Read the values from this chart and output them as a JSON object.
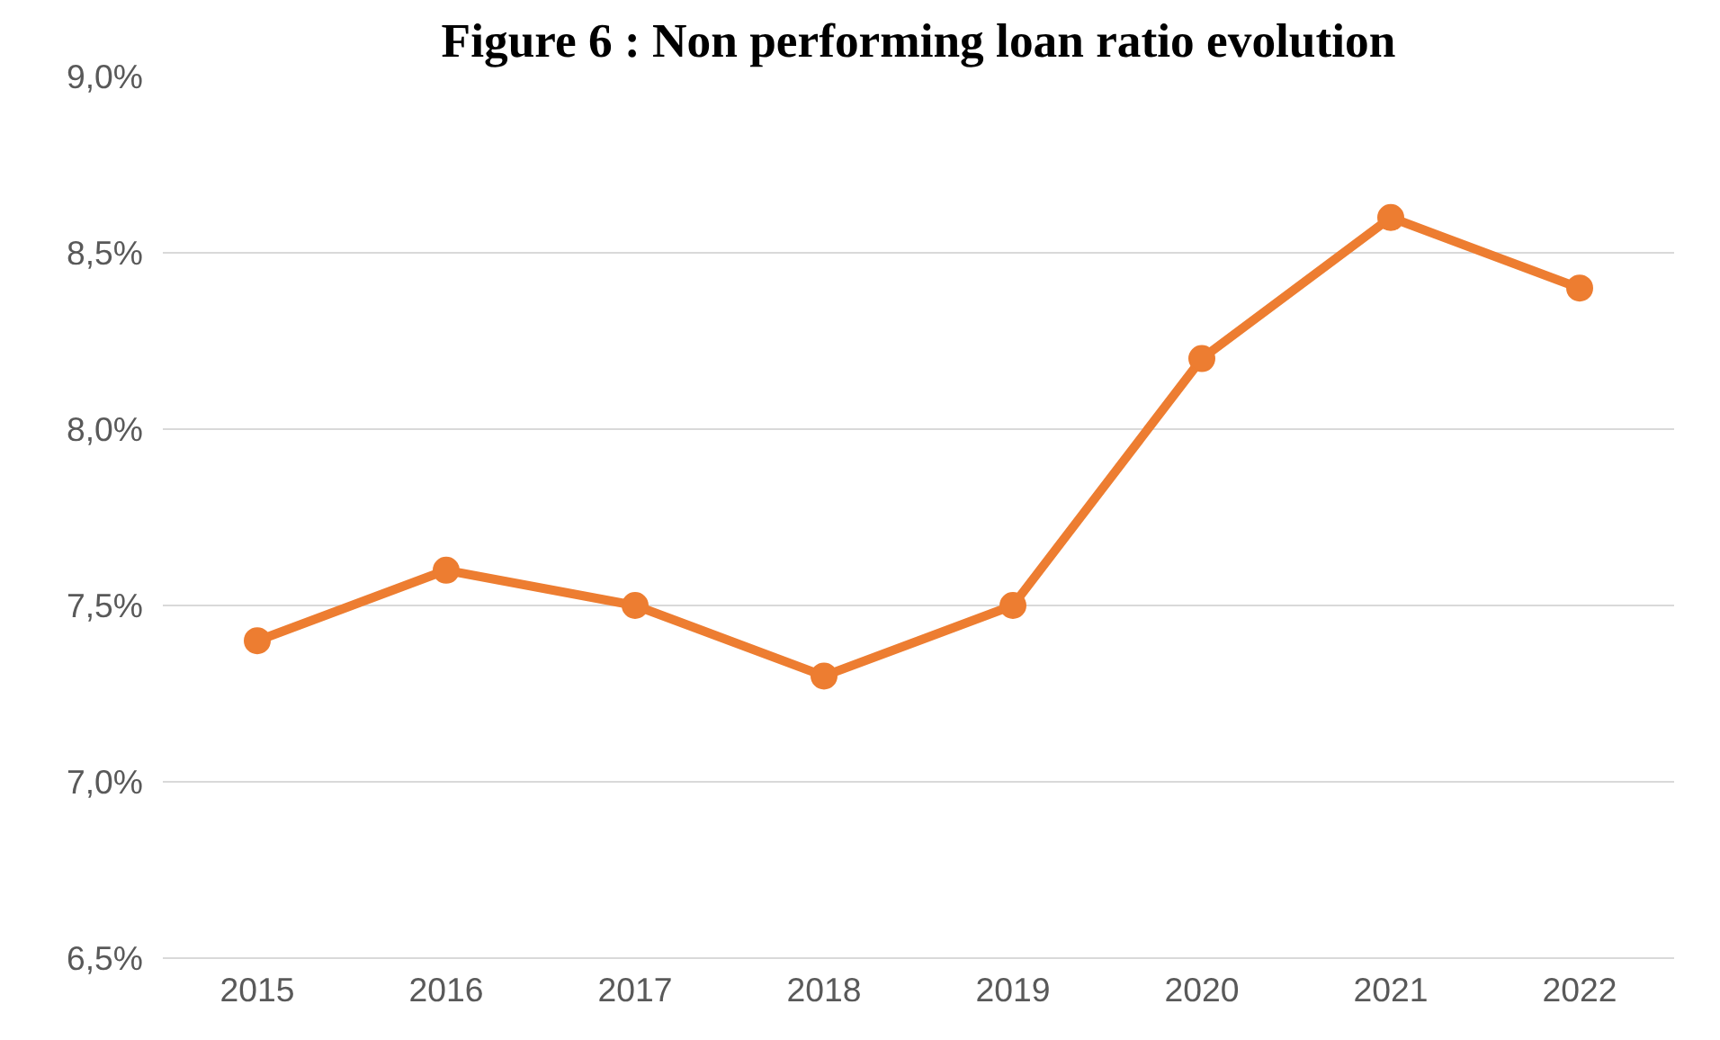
{
  "chart_data": {
    "type": "line",
    "title": "Figure 6 : Non performing loan ratio evolution",
    "categories": [
      "2015",
      "2016",
      "2017",
      "2018",
      "2019",
      "2020",
      "2021",
      "2022"
    ],
    "series": [
      {
        "color": "#ed7d31",
        "values": [
          7.4,
          7.6,
          7.5,
          7.3,
          7.5,
          8.2,
          8.6,
          8.4
        ]
      }
    ],
    "ylim": [
      6.5,
      9.0
    ],
    "yticks": [
      {
        "value": 6.5,
        "label": "6,5%"
      },
      {
        "value": 7.0,
        "label": "7,0%"
      },
      {
        "value": 7.5,
        "label": "7,5%"
      },
      {
        "value": 8.0,
        "label": "8,0%"
      },
      {
        "value": 8.5,
        "label": "8,5%"
      },
      {
        "value": 9.0,
        "label": "9,0%"
      }
    ],
    "grid": "y",
    "marker": "circle",
    "line_style": "solid"
  }
}
